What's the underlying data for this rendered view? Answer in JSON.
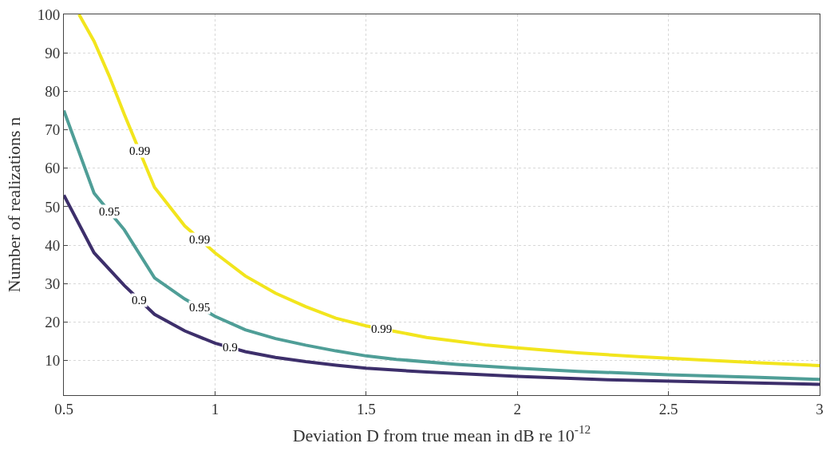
{
  "chart_data": {
    "type": "line",
    "xlabel": "Deviation D from true mean in dB re 10$^{-12}$",
    "ylabel": "Number of realizations n",
    "xlim": [
      0.5,
      3
    ],
    "xticks": [
      0.5,
      1,
      1.5,
      2,
      2.5,
      3
    ],
    "ylim": [
      1,
      100
    ],
    "yticks": [
      10,
      20,
      30,
      40,
      50,
      60,
      70,
      80,
      90,
      100
    ],
    "grid": true,
    "marker": "none",
    "line_style": "solid",
    "series": [
      {
        "color": "#f2e51d",
        "x": [
          0.55,
          0.6,
          0.65,
          0.7,
          0.8,
          0.9,
          1.0,
          1.1,
          1.2,
          1.3,
          1.4,
          1.5,
          1.6,
          1.7,
          1.8,
          1.9,
          2.0,
          2.2,
          2.4,
          2.6,
          2.8,
          3.0
        ],
        "values": [
          100,
          93,
          84,
          74,
          55,
          45,
          38,
          32,
          27.5,
          24,
          21,
          19,
          17.5,
          16,
          15,
          14,
          13.3,
          12,
          11,
          10.2,
          9.4,
          8.7
        ]
      },
      {
        "color": "#4f9e97",
        "x": [
          0.5,
          0.6,
          0.7,
          0.8,
          0.9,
          1.0,
          1.1,
          1.2,
          1.3,
          1.4,
          1.5,
          1.6,
          1.8,
          2.0,
          2.2,
          2.5,
          2.8,
          3.0
        ],
        "values": [
          75,
          53.5,
          44,
          31.5,
          26,
          21.5,
          18,
          15.7,
          14,
          12.5,
          11.2,
          10.3,
          9,
          8,
          7.2,
          6.3,
          5.6,
          5.1
        ]
      },
      {
        "color": "#3d2f6b",
        "x": [
          0.5,
          0.6,
          0.7,
          0.8,
          0.9,
          1.0,
          1.1,
          1.2,
          1.3,
          1.4,
          1.5,
          1.7,
          2.0,
          2.3,
          2.6,
          3.0
        ],
        "values": [
          53,
          38,
          29.5,
          22,
          17.7,
          14.5,
          12.3,
          10.8,
          9.7,
          8.8,
          8,
          7,
          5.9,
          5,
          4.5,
          3.8
        ]
      }
    ],
    "annotations": [
      {
        "text": "0.99",
        "x": 0.75,
        "y": 64.5
      },
      {
        "text": "0.99",
        "x": 0.95,
        "y": 41.5
      },
      {
        "text": "0.99",
        "x": 1.55,
        "y": 18.25
      },
      {
        "text": "0.95",
        "x": 0.65,
        "y": 48.75
      },
      {
        "text": "0.95",
        "x": 0.95,
        "y": 23.75
      },
      {
        "text": "0.9",
        "x": 0.75,
        "y": 25.75
      },
      {
        "text": "0.9",
        "x": 1.05,
        "y": 13.4
      }
    ]
  }
}
